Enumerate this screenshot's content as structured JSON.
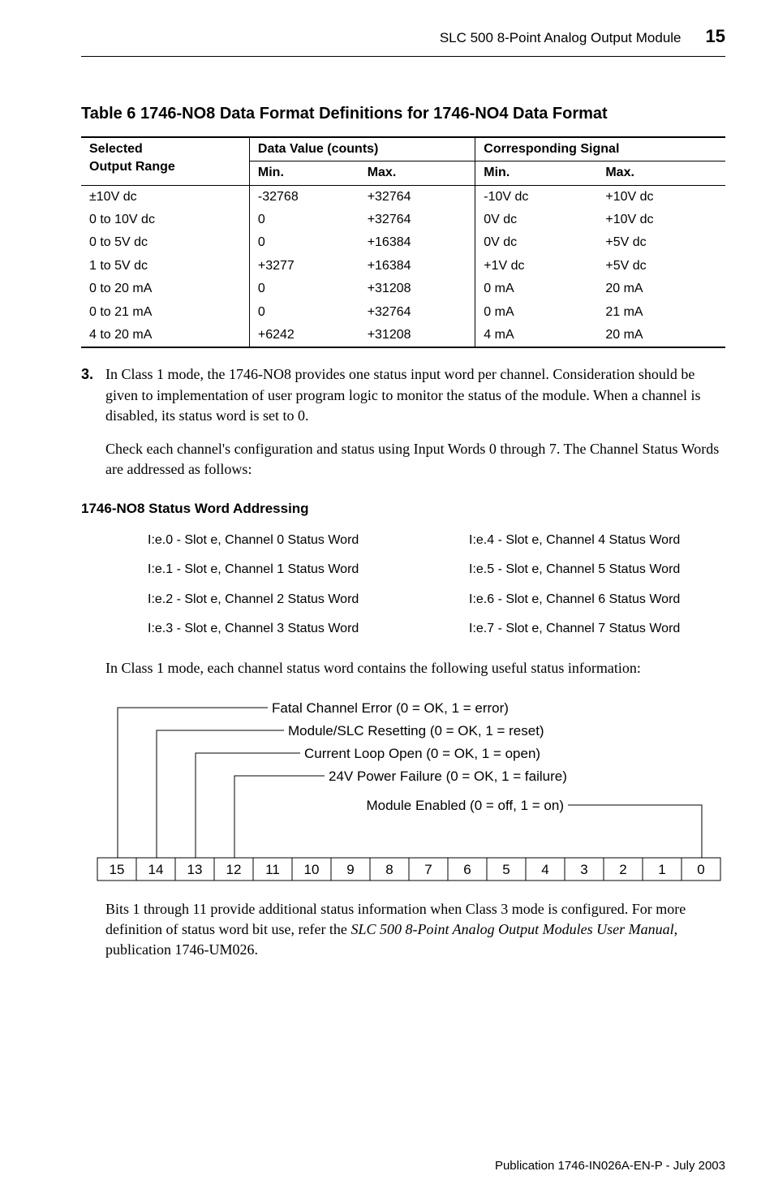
{
  "header": {
    "title": "SLC 500 8-Point Analog Output Module",
    "page": "15"
  },
  "table6": {
    "caption": "Table 6 1746-NO8 Data Format Definitions for 1746-NO4 Data Format",
    "col_headers": {
      "selected": "Selected Output Range",
      "data_value": "Data Value (counts)",
      "corresponding": "Corresponding Signal",
      "min": "Min.",
      "max": "Max."
    },
    "rows": [
      {
        "range": "±10V dc",
        "dmin": "-32768",
        "dmax": "+32764",
        "smin": "-10V dc",
        "smax": "+10V dc"
      },
      {
        "range": "0 to 10V dc",
        "dmin": "0",
        "dmax": "+32764",
        "smin": "0V dc",
        "smax": "+10V dc"
      },
      {
        "range": "0 to 5V dc",
        "dmin": "0",
        "dmax": "+16384",
        "smin": "0V dc",
        "smax": "+5V dc"
      },
      {
        "range": "1 to 5V dc",
        "dmin": "+3277",
        "dmax": "+16384",
        "smin": "+1V dc",
        "smax": "+5V dc"
      },
      {
        "range": "0 to 20 mA",
        "dmin": "0",
        "dmax": "+31208",
        "smin": "0 mA",
        "smax": "20 mA"
      },
      {
        "range": "0 to 21 mA",
        "dmin": "0",
        "dmax": "+32764",
        "smin": "0 mA",
        "smax": "21 mA"
      },
      {
        "range": "4 to 20 mA",
        "dmin": "+6242",
        "dmax": "+31208",
        "smin": "4 mA",
        "smax": "20 mA"
      }
    ]
  },
  "list3": {
    "num": "3.",
    "p1": "In Class 1 mode, the 1746-NO8 provides one status input word per channel. Consideration should be given to implementation of user program logic to monitor the status of the module. When a channel is disabled, its status word is set to 0.",
    "p2": "Check each channel's configuration and status using Input Words 0 through 7. The Channel Status Words are addressed as follows:"
  },
  "addr_heading": "1746-NO8 Status Word Addressing",
  "addr_rows": [
    {
      "l": "I:e.0 - Slot e, Channel 0 Status Word",
      "r": "I:e.4 - Slot e, Channel 4 Status Word"
    },
    {
      "l": "I:e.1 - Slot e, Channel 1 Status Word",
      "r": "I:e.5 - Slot e, Channel 5 Status Word"
    },
    {
      "l": "I:e.2 - Slot e, Channel 2 Status Word",
      "r": "I:e.6 - Slot e, Channel 6 Status Word"
    },
    {
      "l": "I:e.3 - Slot e, Channel 3 Status Word",
      "r": "I:e.7 - Slot e, Channel 7 Status Word"
    }
  ],
  "p3": "In Class 1 mode, each channel status word contains the following useful status information:",
  "bitdiagram": {
    "labels": {
      "fatal": "Fatal Channel Error (0 = OK, 1 = error)",
      "reset": "Module/SLC Resetting (0 = OK, 1 = reset)",
      "loop": "Current Loop Open (0 = OK, 1 = open)",
      "pwr": "24V Power Failure (0 = OK, 1 = failure)",
      "enabled": "Module Enabled (0 = off, 1 = on)"
    },
    "bits": [
      "15",
      "14",
      "13",
      "12",
      "11",
      "10",
      "9",
      "8",
      "7",
      "6",
      "5",
      "4",
      "3",
      "2",
      "1",
      "0"
    ]
  },
  "p4a": "Bits 1 through 11 provide additional status information when Class 3 mode is configured. For more definition of status word bit use, refer the ",
  "p4i": "SLC 500 8-Point Analog Output Modules User Manual",
  "p4b": ", publication 1746-UM026.",
  "footer": "Publication 1746-IN026A-EN-P - July 2003"
}
